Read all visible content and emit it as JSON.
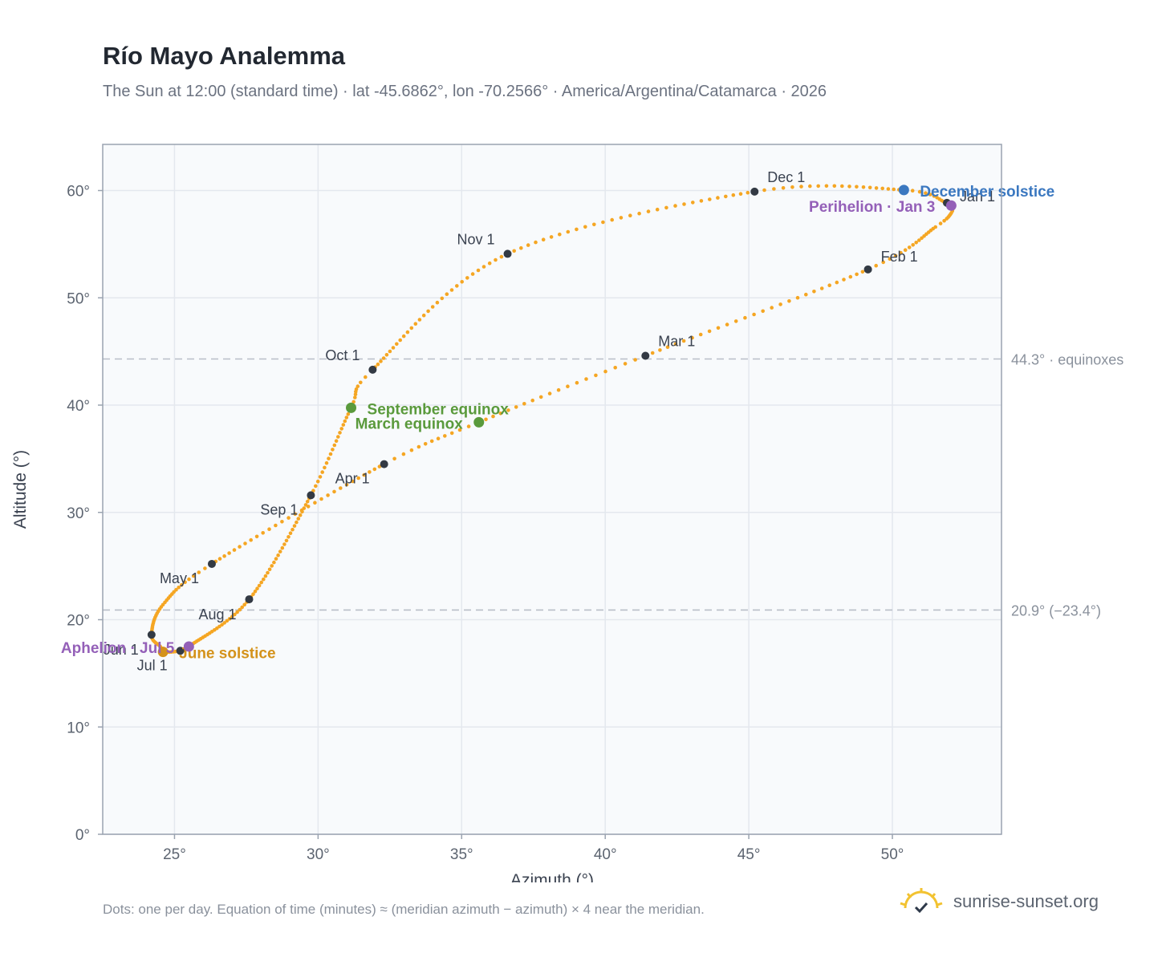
{
  "header": {
    "title": "Río Mayo Analemma",
    "subtitle": "The Sun at 12:00 (standard time) · lat -45.6862°, lon -70.2566° · America/Argentina/Catamarca · 2026"
  },
  "footer": {
    "note": "Dots: one per day. Equation of time (minutes) ≈ (meridian azimuth − azimuth) × 4 near the meridian.",
    "brand": "sunrise-sunset.org",
    "brand_icon": "sun-logo-icon"
  },
  "colors": {
    "curve": "#f5a623",
    "month_marker": "#333a44",
    "equinox": "#5a9a3c",
    "june_solstice": "#d4921a",
    "december_solstice": "#3b78c0",
    "perihelion_aphelion": "#9460b8",
    "reference_line": "#b8bec7",
    "plot_background": "#f8fafc",
    "grid": "#e4e8ee",
    "frame": "#9aa3b0"
  },
  "chart_data": {
    "type": "scatter",
    "xlabel": "Azimuth (°)",
    "ylabel": "Altitude (°)",
    "xlim": [
      22.5,
      53.8
    ],
    "ylim": [
      0,
      64.3
    ],
    "x_ticks": [
      25,
      30,
      35,
      40,
      45,
      50
    ],
    "y_ticks": [
      0,
      10,
      20,
      30,
      40,
      50,
      60
    ],
    "x_tick_labels": [
      "25°",
      "30°",
      "35°",
      "40°",
      "45°",
      "50°"
    ],
    "y_tick_labels": [
      "0°",
      "10°",
      "20°",
      "30°",
      "40°",
      "50°",
      "60°"
    ],
    "grid": true,
    "legend": "none",
    "series_points_per_day": true,
    "daily_path_knots": [
      {
        "date": "2026-01-01",
        "x": 51.9,
        "y": 58.85
      },
      {
        "date": "2026-01-03",
        "x": 52.05,
        "y": 58.6
      },
      {
        "date": "2026-01-08",
        "x": 52.05,
        "y": 57.9
      },
      {
        "date": "2026-01-15",
        "x": 51.5,
        "y": 56.6
      },
      {
        "date": "2026-02-01",
        "x": 49.15,
        "y": 52.65
      },
      {
        "date": "2026-03-01",
        "x": 41.4,
        "y": 44.6
      },
      {
        "date": "2026-03-20",
        "x": 35.6,
        "y": 38.4
      },
      {
        "date": "2026-04-01",
        "x": 32.3,
        "y": 34.5
      },
      {
        "date": "2026-05-01",
        "x": 26.3,
        "y": 25.2
      },
      {
        "date": "2026-05-16",
        "x": 24.6,
        "y": 21.4
      },
      {
        "date": "2026-06-01",
        "x": 24.2,
        "y": 18.6
      },
      {
        "date": "2026-06-10",
        "x": 24.5,
        "y": 17.5
      },
      {
        "date": "2026-06-21",
        "x": 24.6,
        "y": 17.0
      },
      {
        "date": "2026-07-01",
        "x": 25.2,
        "y": 17.1
      },
      {
        "date": "2026-07-05",
        "x": 25.5,
        "y": 17.5
      },
      {
        "date": "2026-08-01",
        "x": 27.6,
        "y": 21.9
      },
      {
        "date": "2026-09-01",
        "x": 29.75,
        "y": 31.6
      },
      {
        "date": "2026-09-22",
        "x": 31.15,
        "y": 39.75
      },
      {
        "date": "2026-10-01",
        "x": 31.9,
        "y": 43.3
      },
      {
        "date": "2026-11-01",
        "x": 36.6,
        "y": 54.1
      },
      {
        "date": "2026-12-01",
        "x": 45.2,
        "y": 59.9
      },
      {
        "date": "2026-12-21",
        "x": 50.4,
        "y": 60.05
      },
      {
        "date": "2026-12-31",
        "x": 51.85,
        "y": 58.9
      }
    ],
    "month_markers": [
      {
        "label": "Jan 1",
        "x": 51.9,
        "y": 58.85
      },
      {
        "label": "Feb 1",
        "x": 49.15,
        "y": 52.65
      },
      {
        "label": "Mar 1",
        "x": 41.4,
        "y": 44.6
      },
      {
        "label": "Apr 1",
        "x": 32.3,
        "y": 34.5
      },
      {
        "label": "May 1",
        "x": 26.3,
        "y": 25.2
      },
      {
        "label": "Jun 1",
        "x": 24.2,
        "y": 18.6
      },
      {
        "label": "Jul 1",
        "x": 25.2,
        "y": 17.1
      },
      {
        "label": "Aug 1",
        "x": 27.6,
        "y": 21.9
      },
      {
        "label": "Sep 1",
        "x": 29.75,
        "y": 31.6
      },
      {
        "label": "Oct 1",
        "x": 31.9,
        "y": 43.3
      },
      {
        "label": "Nov 1",
        "x": 36.6,
        "y": 54.1
      },
      {
        "label": "Dec 1",
        "x": 45.2,
        "y": 59.9
      }
    ],
    "events": [
      {
        "label": "March equinox",
        "x": 35.6,
        "y": 38.4,
        "kind": "equinox"
      },
      {
        "label": "September equinox",
        "x": 31.15,
        "y": 39.75,
        "kind": "equinox"
      },
      {
        "label": "June solstice",
        "x": 24.6,
        "y": 17.0,
        "kind": "june_solstice"
      },
      {
        "label": "December solstice",
        "x": 50.4,
        "y": 60.05,
        "kind": "december_solstice"
      },
      {
        "label": "Perihelion · Jan 3",
        "x": 52.05,
        "y": 58.6,
        "kind": "perihelion_aphelion"
      },
      {
        "label": "Aphelion · Jul 5",
        "x": 25.5,
        "y": 17.5,
        "kind": "perihelion_aphelion"
      }
    ],
    "reference_lines": [
      {
        "y": 44.3,
        "label": "44.3° · equinoxes"
      },
      {
        "y": 20.9,
        "label": "20.9° (−23.4°)"
      }
    ]
  }
}
